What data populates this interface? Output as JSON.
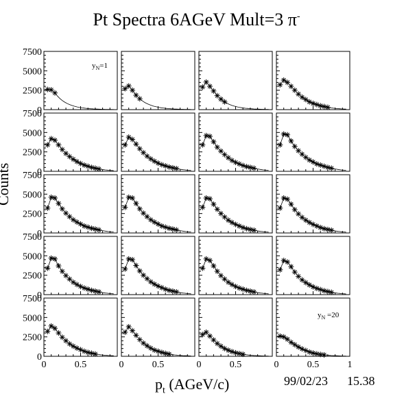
{
  "header": {
    "title": "Pt Spectra 6AGeV Mult=3 π",
    "title_sup": "-"
  },
  "axes": {
    "ylabel": "Counts",
    "xlabel_main": "p",
    "xlabel_sub": "t",
    "xlabel_rest": " (AGeV/c)"
  },
  "footer": {
    "date": "99/02/23",
    "time": "15.38"
  },
  "annotations": {
    "first_base": "y",
    "first_sub": "N",
    "first_rest": "=1",
    "last_base": "y",
    "last_sub": "N",
    "last_rest": " =20"
  },
  "chart_data": {
    "type": "scatter",
    "layout": "5x4 grid of panels, shared axes",
    "xlim": [
      0,
      1
    ],
    "ylim": [
      0,
      7500
    ],
    "xticks": [
      "0",
      "0.5",
      "1"
    ],
    "yticks": [
      "0",
      "2500",
      "5000",
      "7500"
    ],
    "marker": "asterisk",
    "fit_curve": true,
    "x": [
      0.05,
      0.1,
      0.15,
      0.2,
      0.25,
      0.3,
      0.35,
      0.4,
      0.45,
      0.5,
      0.55,
      0.6,
      0.65,
      0.7,
      0.75
    ],
    "panels": [
      {
        "y": [
          2600,
          2550,
          2150
        ]
      },
      {
        "y": [
          2700,
          3050,
          2500,
          1850,
          1400
        ]
      },
      {
        "y": [
          2900,
          3550,
          3000,
          2400,
          1800,
          1350,
          1000
        ]
      },
      {
        "y": [
          3200,
          3800,
          3500,
          3000,
          2500,
          2000,
          1600,
          1300,
          1000,
          800,
          650,
          500,
          400,
          300
        ]
      },
      {
        "y": [
          3400,
          4200,
          4000,
          3400,
          2800,
          2300,
          1900,
          1550,
          1250,
          1000,
          800,
          650,
          500,
          400,
          300
        ]
      },
      {
        "y": [
          3400,
          4400,
          4100,
          3500,
          2900,
          2400,
          1950,
          1600,
          1300,
          1050,
          850,
          700,
          550,
          450,
          350
        ]
      },
      {
        "y": [
          3400,
          4600,
          4500,
          3800,
          3100,
          2600,
          2150,
          1750,
          1400,
          1150,
          950,
          750,
          600,
          500,
          400
        ]
      },
      {
        "y": [
          3400,
          4800,
          4700,
          3900,
          3200,
          2650,
          2200,
          1800,
          1450,
          1200,
          950,
          800,
          650,
          500,
          400
        ]
      },
      {
        "y": [
          3200,
          4600,
          4500,
          3800,
          3100,
          2550,
          2100,
          1700,
          1400,
          1150,
          900,
          750,
          600,
          500,
          400
        ]
      },
      {
        "y": [
          3300,
          4600,
          4500,
          3800,
          3100,
          2550,
          2100,
          1700,
          1400,
          1150,
          900,
          750,
          600,
          500,
          400
        ]
      },
      {
        "y": [
          3300,
          4500,
          4400,
          3700,
          3050,
          2500,
          2050,
          1650,
          1350,
          1100,
          900,
          700,
          550,
          450,
          350
        ]
      },
      {
        "y": [
          3200,
          4500,
          4350,
          3700,
          3000,
          2450,
          2000,
          1650,
          1350,
          1100,
          900,
          700,
          550,
          450,
          350
        ]
      },
      {
        "y": [
          3400,
          4700,
          4600,
          3700,
          3000,
          2450,
          2000,
          1600,
          1300,
          1050,
          850,
          700,
          550,
          450,
          350
        ]
      },
      {
        "y": [
          3300,
          4600,
          4500,
          3750,
          3050,
          2500,
          2050,
          1650,
          1350,
          1100,
          900,
          700,
          550,
          450,
          350
        ]
      },
      {
        "y": [
          3400,
          4600,
          4400,
          3700,
          3000,
          2450,
          2000,
          1600,
          1300,
          1050,
          850,
          700,
          550,
          450,
          350
        ]
      },
      {
        "y": [
          3200,
          4400,
          4200,
          3600,
          2900,
          2350,
          1900,
          1550,
          1250,
          1000,
          800,
          650,
          500,
          400,
          300
        ]
      },
      {
        "y": [
          3200,
          3900,
          3600,
          3000,
          2450,
          2000,
          1600,
          1300,
          1050,
          850,
          650,
          500,
          400,
          300
        ]
      },
      {
        "y": [
          3100,
          3800,
          3300,
          2700,
          2150,
          1700,
          1350,
          1050,
          800,
          650,
          500,
          380,
          280
        ]
      },
      {
        "y": [
          2800,
          3100,
          2600,
          2100,
          1650,
          1300,
          1000,
          780,
          600,
          450,
          350,
          260
        ]
      },
      {
        "y": [
          2600,
          2500,
          2200,
          1800,
          1500,
          1200,
          950,
          750,
          550,
          420,
          320,
          240,
          180
        ]
      }
    ]
  }
}
